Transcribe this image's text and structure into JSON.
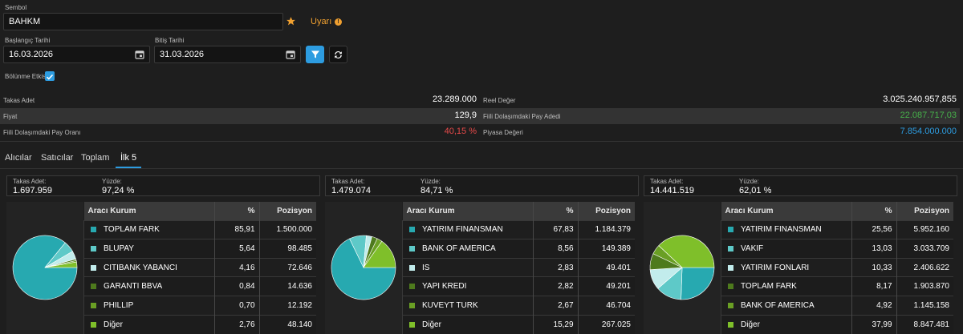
{
  "form": {
    "symbol_label": "Sembol",
    "symbol_value": "BAHKM",
    "warning_label": "Uyarı",
    "start_label": "Başlangıç Tarihi",
    "start_value": "16.03.2026",
    "end_label": "Bitiş Tarihi",
    "end_value": "31.03.2026",
    "split_label": "Bölünme Etkisi"
  },
  "stats": {
    "takas_adet_label": "Takas Adet",
    "takas_adet_value": "23.289.000",
    "reel_label": "Reel Değer",
    "reel_value": "3.025.240.957,855",
    "fiyat_label": "Fiyat",
    "fiyat_value": "129,9",
    "fiili_adet_label": "Fiili Dolaşımdaki Pay Adedi",
    "fiili_adet_value": "22.087.717,03",
    "fiili_oran_label": "Fiili Dolaşımdaki Pay Oranı",
    "fiili_oran_value": "40,15 %",
    "piyasa_label": "Piyasa Değeri",
    "piyasa_value": "7.854.000.000"
  },
  "tabs": [
    "Alıcılar",
    "Satıcılar",
    "Toplam",
    "İlk 5"
  ],
  "colors": [
    "#27a9b0",
    "#5ec9c8",
    "#c2ecec",
    "#4e7a1d",
    "#6a9f24",
    "#7fbf2a"
  ],
  "panels": [
    {
      "takas_label": "Takas Adet:",
      "takas_value": "1.697.959",
      "yuzde_label": "Yüzde:",
      "yuzde_value": "97,24 %",
      "headers": [
        "Aracı Kurum",
        "%",
        "Pozisyon"
      ],
      "rows": [
        {
          "name": "TOPLAM FARK",
          "pct": "85,91",
          "pos": "1.500.000"
        },
        {
          "name": "BLUPAY",
          "pct": "5,64",
          "pos": "98.485"
        },
        {
          "name": "CITIBANK YABANCI",
          "pct": "4,16",
          "pos": "72.646"
        },
        {
          "name": "GARANTI BBVA",
          "pct": "0,84",
          "pos": "14.636"
        },
        {
          "name": "PHILLIP",
          "pct": "0,70",
          "pos": "12.192"
        },
        {
          "name": "Diğer",
          "pct": "2,76",
          "pos": "48.140"
        }
      ]
    },
    {
      "takas_label": "Takas Adet:",
      "takas_value": "1.479.074",
      "yuzde_label": "Yüzde:",
      "yuzde_value": "84,71 %",
      "headers": [
        "Aracı Kurum",
        "%",
        "Pozisyon"
      ],
      "rows": [
        {
          "name": "YATIRIM FINANSMAN",
          "pct": "67,83",
          "pos": "1.184.379"
        },
        {
          "name": "BANK OF AMERICA",
          "pct": "8,56",
          "pos": "149.389"
        },
        {
          "name": "IS",
          "pct": "2,83",
          "pos": "49.401"
        },
        {
          "name": "YAPI KREDI",
          "pct": "2,82",
          "pos": "49.201"
        },
        {
          "name": "KUVEYT TURK",
          "pct": "2,67",
          "pos": "46.704"
        },
        {
          "name": "Diğer",
          "pct": "15,29",
          "pos": "267.025"
        }
      ]
    },
    {
      "takas_label": "Takas Adet:",
      "takas_value": "14.441.519",
      "yuzde_label": "Yüzde:",
      "yuzde_value": "62,01 %",
      "headers": [
        "Aracı Kurum",
        "%",
        "Pozisyon"
      ],
      "rows": [
        {
          "name": "YATIRIM FINANSMAN",
          "pct": "25,56",
          "pos": "5.952.160"
        },
        {
          "name": "VAKIF",
          "pct": "13,03",
          "pos": "3.033.709"
        },
        {
          "name": "YATIRIM FONLARI",
          "pct": "10,33",
          "pos": "2.406.622"
        },
        {
          "name": "TOPLAM FARK",
          "pct": "8,17",
          "pos": "1.903.870"
        },
        {
          "name": "BANK OF AMERICA",
          "pct": "4,92",
          "pos": "1.145.158"
        },
        {
          "name": "Diğer",
          "pct": "37,99",
          "pos": "8.847.481"
        }
      ]
    }
  ]
}
